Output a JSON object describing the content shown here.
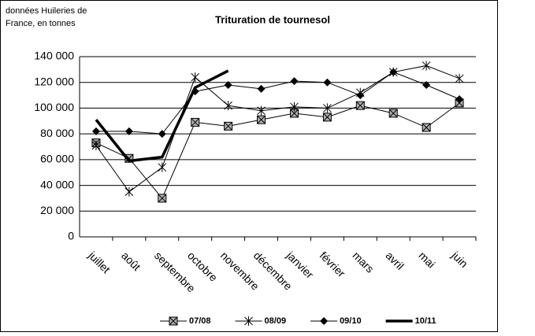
{
  "chart_data": {
    "type": "line",
    "title": "Trituration de tournesol",
    "annotation": [
      "données Huileries de",
      "France, en tonnes"
    ],
    "categories": [
      "juillet",
      "août",
      "septembre",
      "octobre",
      "novembre",
      "décembre",
      "janvier",
      "février",
      "mars",
      "avril",
      "mai",
      "juin"
    ],
    "series": [
      {
        "name": "07/08",
        "color": "#000000",
        "marker": "box-x",
        "marker_fill": "#b0b0b0",
        "line_width": 1,
        "values": [
          73000,
          61000,
          30000,
          89000,
          86000,
          91000,
          96000,
          93000,
          102000,
          96000,
          85000,
          104000
        ]
      },
      {
        "name": "08/09",
        "color": "#000000",
        "marker": "star",
        "line_width": 1,
        "values": [
          71000,
          35000,
          54000,
          124000,
          102000,
          98000,
          101000,
          100000,
          112000,
          128000,
          133000,
          123000
        ]
      },
      {
        "name": "09/10",
        "color": "#000000",
        "marker": "diamond",
        "line_width": 1,
        "values": [
          82000,
          82000,
          80000,
          113000,
          118000,
          115000,
          121000,
          120000,
          110000,
          128000,
          118000,
          107000
        ]
      },
      {
        "name": "10/11",
        "color": "#000000",
        "marker": "none",
        "line_width": 3.5,
        "values": [
          91000,
          59000,
          62000,
          116000,
          129000,
          null,
          null,
          null,
          null,
          null,
          null,
          null
        ]
      }
    ],
    "ylim": [
      0,
      140000
    ],
    "yticks": [
      0,
      {
        "value": 20000,
        "label": "20 000"
      },
      {
        "value": 40000,
        "label": "40 000"
      },
      {
        "value": 60000,
        "label": "60 000"
      },
      {
        "value": 80000,
        "label": "80 000"
      },
      {
        "value": 100000,
        "label": "100 000"
      },
      {
        "value": 120000,
        "label": "120 000"
      },
      {
        "value": 140000,
        "label": "140 000"
      }
    ],
    "grid": true,
    "legend": "bottom"
  }
}
